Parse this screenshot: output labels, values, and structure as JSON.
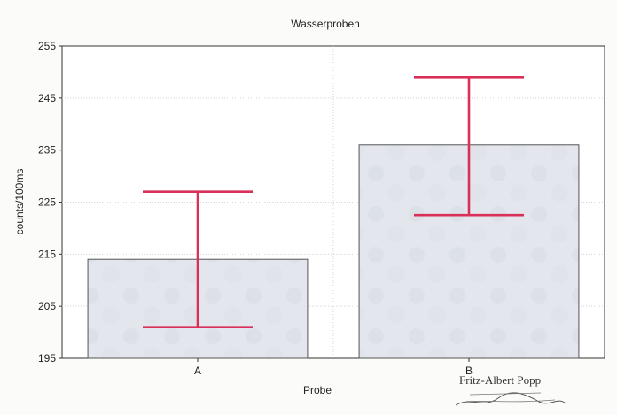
{
  "chart_data": {
    "type": "bar",
    "title": "Wasserproben",
    "xlabel": "Probe",
    "ylabel": "counts/100ms",
    "categories": [
      "A",
      "B"
    ],
    "values": [
      214,
      236
    ],
    "error_bars": [
      {
        "low": 201,
        "high": 227
      },
      {
        "low": 222.5,
        "high": 249
      }
    ],
    "ylim": [
      195,
      255
    ],
    "yticks": [
      195,
      205,
      215,
      225,
      235,
      245,
      255
    ],
    "ytick_labels": [
      "195",
      "205",
      "215",
      "225",
      "235",
      "245",
      "255"
    ],
    "grid": true,
    "legend": "none",
    "colors": {
      "bar_fill": "#e3e6ec",
      "bar_stroke": "#555555",
      "error_bar": "#d9305a",
      "grid": "#d4d4d4",
      "axis": "#333333",
      "text": "#222222"
    }
  },
  "signature": {
    "name": "Fritz-Albert Popp"
  }
}
